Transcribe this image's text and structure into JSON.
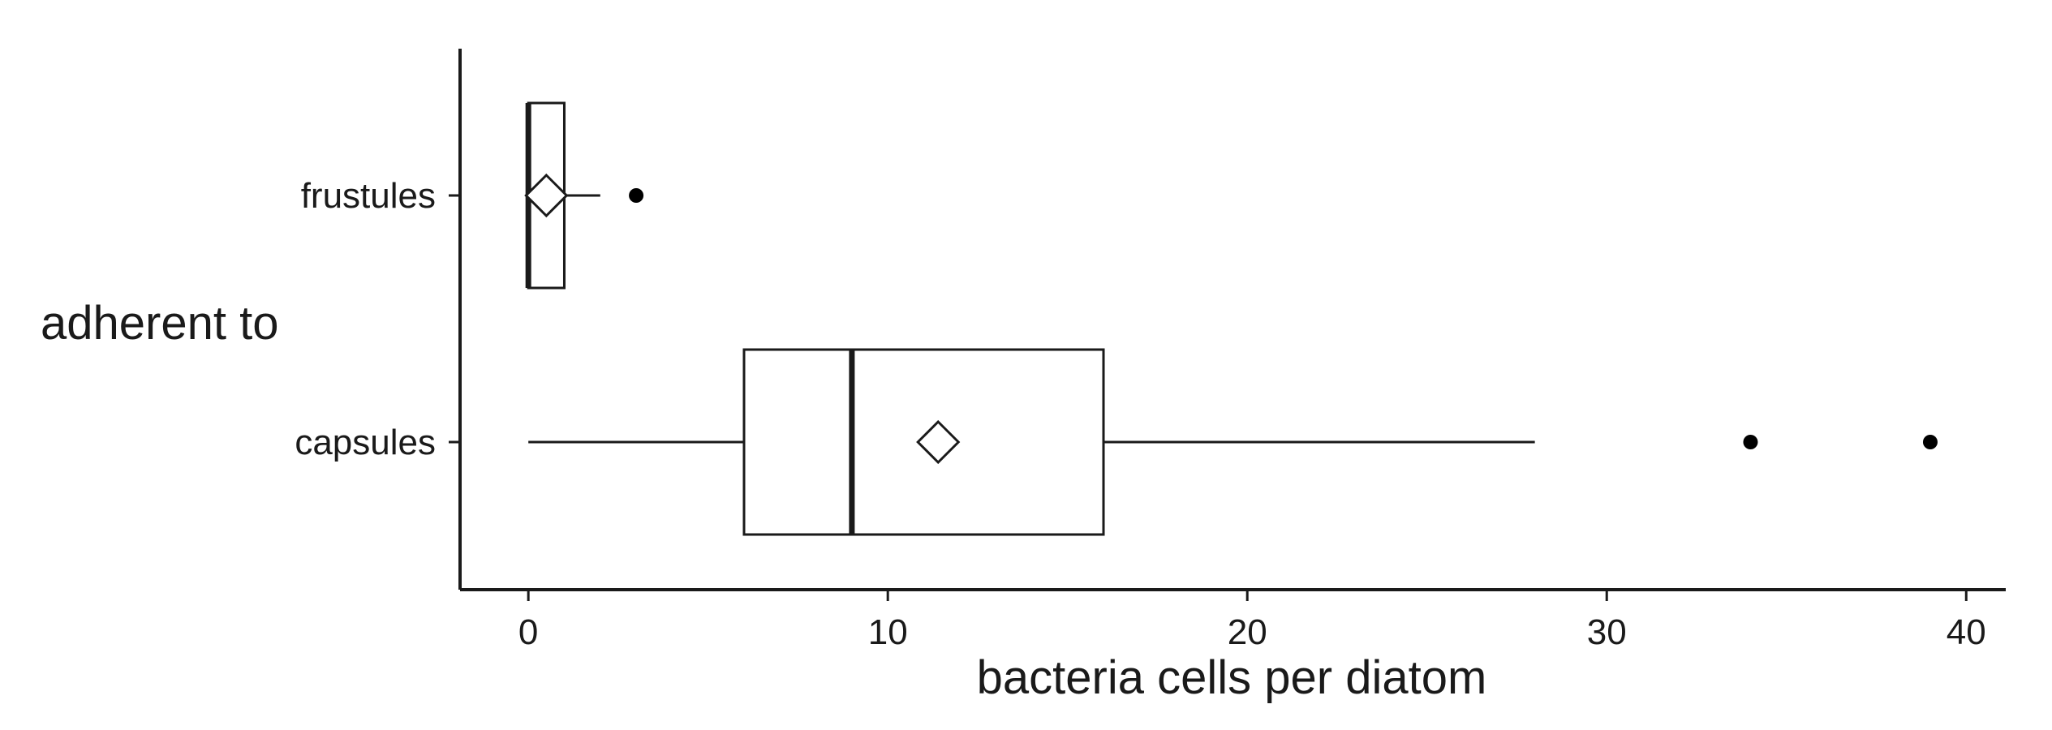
{
  "chart_data": {
    "type": "boxplot",
    "orientation": "horizontal",
    "xlabel": "bacteria cells per diatom",
    "ylabel": "adherent to",
    "xlim": [
      -1.9,
      41.1
    ],
    "xticks": [
      "0",
      "10",
      "20",
      "30",
      "40"
    ],
    "categories": [
      "frustules",
      "capsules"
    ],
    "boxes": [
      {
        "category": "frustules",
        "min": 0,
        "q1": 0,
        "median": 0,
        "q3": 1,
        "max": 2,
        "mean": 0.5,
        "outliers": [
          3
        ]
      },
      {
        "category": "capsules",
        "min": 0,
        "q1": 6,
        "median": 9,
        "q3": 16,
        "max": 28,
        "mean": 11.4,
        "outliers": [
          34,
          39
        ]
      }
    ],
    "mean_marker": "diamond",
    "grid": false,
    "legend": "none"
  },
  "colors": {
    "box_fill": "#ffffff",
    "stroke": "#1a1a1a",
    "outlier": "#000000"
  }
}
